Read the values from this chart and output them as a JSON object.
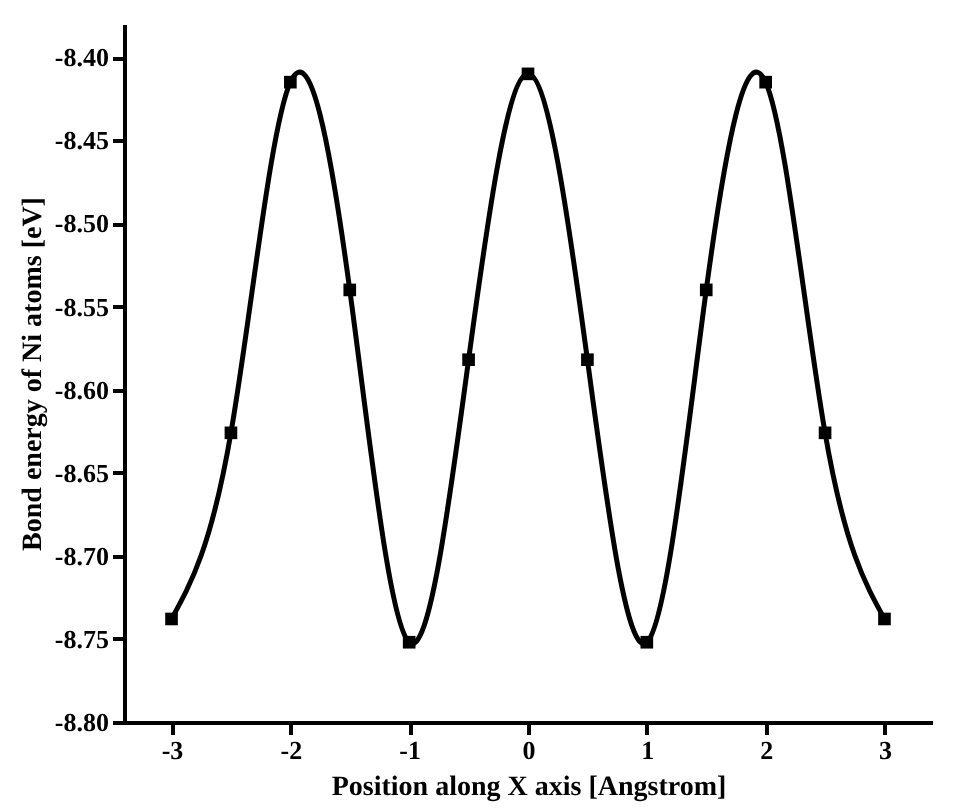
{
  "chart_data": {
    "type": "line",
    "xlabel": "Position along X axis [Angstrom]",
    "ylabel": "Bond energy of Ni atoms [eV]",
    "x": [
      -3,
      -2.5,
      -2,
      -1.5,
      -1,
      -0.5,
      0,
      0.5,
      1,
      1.5,
      2,
      2.5,
      3
    ],
    "series": [
      {
        "color": "#000000",
        "values": [
          -8.738,
          -8.626,
          -8.415,
          -8.54,
          -8.752,
          -8.582,
          -8.41,
          -8.582,
          -8.752,
          -8.54,
          -8.415,
          -8.626,
          -8.738
        ]
      }
    ],
    "xlim": [
      -3.4,
      3.4
    ],
    "xticks": [
      -3,
      -2,
      -1,
      0,
      1,
      2,
      3
    ],
    "ylim": [
      -8.8,
      -8.38
    ],
    "yticks": [
      {
        "value": -8.8,
        "label": "-8.80"
      },
      {
        "value": -8.75,
        "label": "-8.75"
      },
      {
        "value": -8.7,
        "label": "-8.70"
      },
      {
        "value": -8.65,
        "label": "-8.65"
      },
      {
        "value": -8.6,
        "label": "-8.60"
      },
      {
        "value": -8.55,
        "label": "-8.55"
      },
      {
        "value": -8.5,
        "label": "-8.50"
      },
      {
        "value": -8.45,
        "label": "-8.45"
      },
      {
        "value": -8.4,
        "label": "-8.40"
      }
    ],
    "marker": "square",
    "line_style": "solid",
    "grid": false,
    "legend": false
  }
}
